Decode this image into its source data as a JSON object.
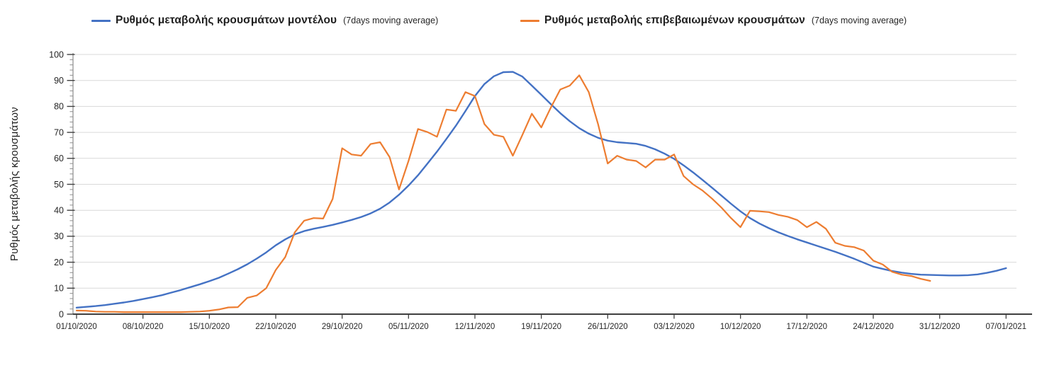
{
  "legend": {
    "items": [
      {
        "label": "Ρυθμός μεταβολής κρουσμάτων μοντέλου",
        "sublabel": "(7days moving average)",
        "color": "#4472C4"
      },
      {
        "label": "Ρυθμός μεταβολής επιβεβαιωμένων κρουσμάτων",
        "sublabel": "(7days moving average)",
        "color": "#ED7D31"
      }
    ]
  },
  "y_axis": {
    "title": "Ρυθμός μεταβολής κρουσμάτων",
    "min": 0,
    "max": 100,
    "tick_step": 10,
    "tick_labels": [
      "0",
      "10",
      "20",
      "30",
      "40",
      "50",
      "60",
      "70",
      "80",
      "90",
      "100"
    ]
  },
  "x_axis": {
    "tick_labels": [
      "01/10/2020",
      "08/10/2020",
      "15/10/2020",
      "22/10/2020",
      "29/10/2020",
      "05/11/2020",
      "12/11/2020",
      "19/11/2020",
      "26/11/2020",
      "03/12/2020",
      "10/12/2020",
      "17/12/2020",
      "24/12/2020",
      "31/12/2020",
      "07/01/2021"
    ],
    "tick_days": [
      0,
      7,
      14,
      21,
      28,
      35,
      42,
      49,
      56,
      63,
      70,
      77,
      84,
      91,
      98
    ]
  },
  "chart_data": {
    "type": "line",
    "title": "",
    "xlabel": "",
    "ylabel": "Ρυθμός μεταβολής κρουσμάτων",
    "ylim": [
      0,
      100
    ],
    "x_start_date": "01/10/2020",
    "x_end_date": "07/01/2021",
    "x_unit": "daily points, day 0 = 01/10/2020",
    "grid": "horizontal-only",
    "legend_position": "top",
    "series": [
      {
        "name": "Ρυθμός μεταβολής κρουσμάτων μοντέλου (7days moving average)",
        "color": "#4472C4",
        "start_day": 0,
        "values": [
          2.5,
          2.8,
          3.1,
          3.5,
          4.0,
          4.5,
          5.1,
          5.8,
          6.5,
          7.3,
          8.3,
          9.3,
          10.4,
          11.5,
          12.7,
          14.0,
          15.6,
          17.3,
          19.2,
          21.4,
          23.8,
          26.5,
          28.8,
          30.7,
          32.0,
          32.9,
          33.6,
          34.4,
          35.3,
          36.3,
          37.4,
          38.8,
          40.6,
          43.0,
          46.0,
          49.5,
          53.5,
          58.0,
          62.6,
          67.5,
          72.6,
          78.2,
          84.0,
          88.6,
          91.6,
          93.2,
          93.3,
          91.5,
          88.0,
          84.5,
          80.9,
          77.4,
          74.3,
          71.6,
          69.5,
          67.9,
          66.8,
          66.2,
          65.9,
          65.6,
          64.8,
          63.5,
          61.8,
          59.8,
          57.3,
          54.6,
          51.7,
          48.7,
          45.6,
          42.5,
          39.6,
          37.0,
          34.9,
          33.1,
          31.5,
          30.1,
          28.8,
          27.6,
          26.4,
          25.2,
          24.0,
          22.7,
          21.3,
          19.8,
          18.3,
          17.4,
          16.6,
          16.0,
          15.5,
          15.2,
          15.1,
          15.0,
          14.9,
          14.9,
          15.0,
          15.3,
          15.9,
          16.7,
          17.7
        ]
      },
      {
        "name": "Ρυθμός μεταβολής επιβεβαιωμένων κρουσμάτων (7days moving average)",
        "color": "#ED7D31",
        "start_day": 0,
        "values": [
          1.4,
          1.3,
          1.0,
          0.9,
          0.9,
          0.8,
          0.8,
          0.8,
          0.8,
          0.8,
          0.8,
          0.8,
          0.9,
          1.0,
          1.3,
          1.8,
          2.6,
          2.7,
          6.3,
          7.2,
          10.0,
          17.0,
          22.0,
          31.5,
          36.0,
          37.0,
          36.8,
          44.4,
          63.9,
          61.5,
          61.0,
          65.5,
          66.2,
          60.5,
          48.0,
          59.0,
          71.3,
          70.1,
          68.3,
          78.8,
          78.3,
          85.5,
          84.0,
          73.2,
          69.1,
          68.3,
          61.0,
          69.0,
          77.2,
          71.9,
          79.5,
          86.5,
          88.0,
          92.0,
          85.5,
          73.0,
          58.0,
          61.0,
          59.5,
          59.0,
          56.5,
          59.5,
          59.5,
          61.5,
          53.2,
          50.0,
          47.6,
          44.5,
          41.0,
          37.0,
          33.5,
          39.8,
          39.6,
          39.3,
          38.2,
          37.5,
          36.2,
          33.5,
          35.5,
          32.9,
          27.5,
          26.3,
          25.8,
          24.5,
          20.6,
          19.1,
          16.3,
          15.2,
          14.7,
          13.6,
          12.8
        ]
      }
    ]
  },
  "colors": {
    "background": "#FFFFFF",
    "gridline": "#D9D9D9",
    "y_axis_line": "#8C8C8C",
    "major_tick": "#404040",
    "x_axis_line": "#3F3F3F",
    "tick_text": "#262626"
  }
}
